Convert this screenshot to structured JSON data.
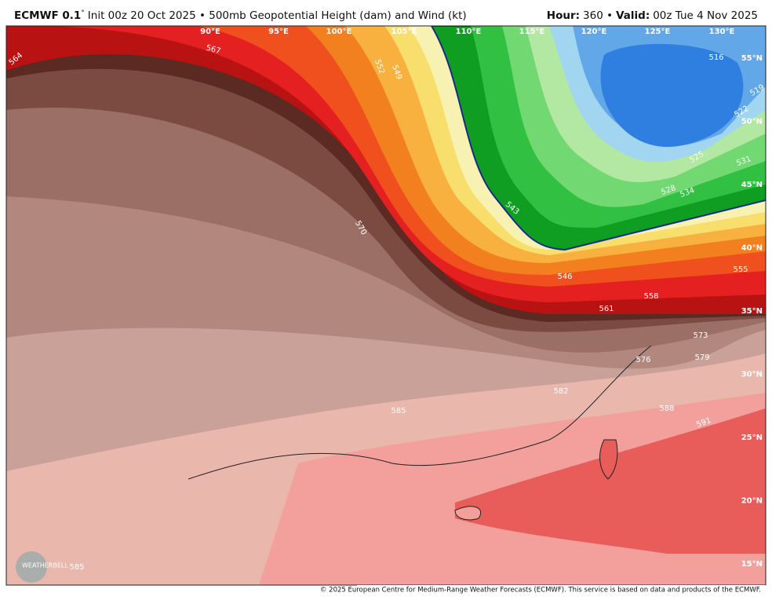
{
  "header": {
    "title_model": "ECMWF 0.1",
    "title_degree": "°",
    "title_rest": "Init 00z 20 Oct 2025 • 500mb Geopotential Height (dam) and Wind (kt)",
    "hour_label": "Hour:",
    "hour_value": "360 •",
    "valid_label": "Valid:",
    "valid_value": "00z Tue 4 Nov 2025"
  },
  "map": {
    "longitude_labels": [
      "90°E",
      "95°E",
      "100°E",
      "105°E",
      "110°E",
      "115°E",
      "120°E",
      "125°E",
      "130°E"
    ],
    "latitude_labels": [
      "55°N",
      "50°N",
      "45°N",
      "40°N",
      "35°N",
      "30°N",
      "25°N",
      "20°N",
      "15°N"
    ],
    "contour_labels": [
      "564",
      "567",
      "570",
      "573",
      "576",
      "579",
      "582",
      "585",
      "588",
      "591",
      "561",
      "558",
      "555",
      "552",
      "549",
      "546",
      "543",
      "534",
      "531",
      "528",
      "525",
      "522",
      "519",
      "516",
      "585"
    ]
  },
  "footer": {
    "copyright": "© 2025 European Centre for Medium-Range Weather Forecasts (ECMWF). This service is based on data and products of the ECMWF.",
    "logo": "WEATHERBELL"
  }
}
